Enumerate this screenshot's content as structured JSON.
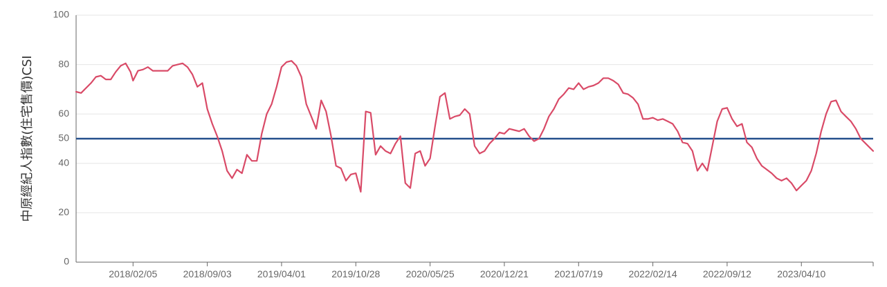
{
  "chart_data": {
    "type": "line",
    "title": "",
    "xlabel": "",
    "ylabel": "中原經紀人指數(住宅售價)CSI",
    "ylim": [
      0,
      100
    ],
    "yticks": [
      0,
      20,
      40,
      50,
      60,
      80,
      100
    ],
    "x_ticks": [
      "2018/02/05",
      "2018/09/03",
      "2019/04/01",
      "2019/10/28",
      "2020/05/25",
      "2020/12/21",
      "2021/07/19",
      "2022/02/14",
      "2022/09/12",
      "2023/04/10"
    ],
    "x_range": [
      "2017/08/28",
      "2023/10/30"
    ],
    "grid": true,
    "reference_line": {
      "value": 50,
      "color": "#234f8c"
    },
    "series": [
      {
        "color": "#d94a67",
        "points": [
          [
            "2017/08/28",
            69
          ],
          [
            "2017/09/11",
            68.5
          ],
          [
            "2017/09/25",
            70.5
          ],
          [
            "2017/10/09",
            72.5
          ],
          [
            "2017/10/23",
            75
          ],
          [
            "2017/11/06",
            75.5
          ],
          [
            "2017/11/20",
            74
          ],
          [
            "2017/12/04",
            74
          ],
          [
            "2017/12/18",
            77
          ],
          [
            "2018/01/01",
            79.5
          ],
          [
            "2018/01/15",
            80.5
          ],
          [
            "2018/01/29",
            77
          ],
          [
            "2018/02/05",
            73.5
          ],
          [
            "2018/02/19",
            77.5
          ],
          [
            "2018/03/05",
            78
          ],
          [
            "2018/03/19",
            79
          ],
          [
            "2018/04/02",
            77.5
          ],
          [
            "2018/04/16",
            77.5
          ],
          [
            "2018/04/30",
            77.5
          ],
          [
            "2018/05/14",
            77.5
          ],
          [
            "2018/05/28",
            79.5
          ],
          [
            "2018/06/11",
            80
          ],
          [
            "2018/06/25",
            80.5
          ],
          [
            "2018/07/09",
            79
          ],
          [
            "2018/07/23",
            76
          ],
          [
            "2018/08/06",
            71
          ],
          [
            "2018/08/20",
            72.5
          ],
          [
            "2018/09/03",
            62
          ],
          [
            "2018/09/17",
            56
          ],
          [
            "2018/10/01",
            51
          ],
          [
            "2018/10/15",
            45
          ],
          [
            "2018/10/29",
            37
          ],
          [
            "2018/11/12",
            34
          ],
          [
            "2018/11/26",
            37.5
          ],
          [
            "2018/12/10",
            36
          ],
          [
            "2018/12/24",
            43.5
          ],
          [
            "2019/01/07",
            41
          ],
          [
            "2019/01/21",
            41
          ],
          [
            "2019/02/04",
            52
          ],
          [
            "2019/02/18",
            60
          ],
          [
            "2019/03/04",
            64
          ],
          [
            "2019/03/18",
            71
          ],
          [
            "2019/04/01",
            79
          ],
          [
            "2019/04/15",
            81
          ],
          [
            "2019/04/29",
            81.5
          ],
          [
            "2019/05/13",
            79.5
          ],
          [
            "2019/05/27",
            75
          ],
          [
            "2019/06/10",
            64
          ],
          [
            "2019/06/24",
            59
          ],
          [
            "2019/07/08",
            54
          ],
          [
            "2019/07/22",
            65.5
          ],
          [
            "2019/08/05",
            61
          ],
          [
            "2019/08/19",
            51
          ],
          [
            "2019/09/02",
            39
          ],
          [
            "2019/09/16",
            38
          ],
          [
            "2019/09/30",
            33
          ],
          [
            "2019/10/14",
            35.5
          ],
          [
            "2019/10/28",
            36
          ],
          [
            "2019/11/11",
            28.5
          ],
          [
            "2019/11/25",
            61
          ],
          [
            "2019/12/09",
            60.5
          ],
          [
            "2019/12/23",
            43.5
          ],
          [
            "2020/01/06",
            47
          ],
          [
            "2020/01/20",
            45
          ],
          [
            "2020/02/03",
            44
          ],
          [
            "2020/02/17",
            48
          ],
          [
            "2020/03/02",
            51
          ],
          [
            "2020/03/16",
            32
          ],
          [
            "2020/03/30",
            30
          ],
          [
            "2020/04/13",
            44
          ],
          [
            "2020/04/27",
            45
          ],
          [
            "2020/05/11",
            39
          ],
          [
            "2020/05/25",
            42
          ],
          [
            "2020/06/08",
            55
          ],
          [
            "2020/06/22",
            67
          ],
          [
            "2020/07/06",
            68.5
          ],
          [
            "2020/07/20",
            58
          ],
          [
            "2020/08/03",
            59
          ],
          [
            "2020/08/17",
            59.5
          ],
          [
            "2020/08/31",
            62
          ],
          [
            "2020/09/14",
            60
          ],
          [
            "2020/09/28",
            47
          ],
          [
            "2020/10/12",
            44
          ],
          [
            "2020/10/26",
            45
          ],
          [
            "2020/11/09",
            48
          ],
          [
            "2020/11/23",
            50
          ],
          [
            "2020/12/07",
            52.5
          ],
          [
            "2020/12/21",
            52
          ],
          [
            "2021/01/04",
            54
          ],
          [
            "2021/01/18",
            53.5
          ],
          [
            "2021/02/01",
            53
          ],
          [
            "2021/02/15",
            54
          ],
          [
            "2021/03/01",
            51
          ],
          [
            "2021/03/15",
            49
          ],
          [
            "2021/03/29",
            50
          ],
          [
            "2021/04/12",
            54
          ],
          [
            "2021/04/26",
            59
          ],
          [
            "2021/05/10",
            62
          ],
          [
            "2021/05/24",
            66
          ],
          [
            "2021/06/07",
            68
          ],
          [
            "2021/06/21",
            70.5
          ],
          [
            "2021/07/05",
            70
          ],
          [
            "2021/07/19",
            72.5
          ],
          [
            "2021/08/02",
            70
          ],
          [
            "2021/08/16",
            71
          ],
          [
            "2021/08/30",
            71.5
          ],
          [
            "2021/09/13",
            72.5
          ],
          [
            "2021/09/27",
            74.5
          ],
          [
            "2021/10/11",
            74.5
          ],
          [
            "2021/10/25",
            73.5
          ],
          [
            "2021/11/08",
            72
          ],
          [
            "2021/11/22",
            68.5
          ],
          [
            "2021/12/06",
            68
          ],
          [
            "2021/12/20",
            66.5
          ],
          [
            "2022/01/03",
            64
          ],
          [
            "2022/01/17",
            58
          ],
          [
            "2022/01/31",
            58
          ],
          [
            "2022/02/14",
            58.5
          ],
          [
            "2022/02/28",
            57.5
          ],
          [
            "2022/03/14",
            58
          ],
          [
            "2022/03/28",
            57
          ],
          [
            "2022/04/11",
            56
          ],
          [
            "2022/04/25",
            53
          ],
          [
            "2022/05/09",
            48.5
          ],
          [
            "2022/05/23",
            48
          ],
          [
            "2022/06/06",
            45
          ],
          [
            "2022/06/20",
            37
          ],
          [
            "2022/07/04",
            40
          ],
          [
            "2022/07/18",
            37
          ],
          [
            "2022/08/01",
            47
          ],
          [
            "2022/08/15",
            57
          ],
          [
            "2022/08/29",
            62
          ],
          [
            "2022/09/12",
            62.5
          ],
          [
            "2022/09/26",
            58
          ],
          [
            "2022/10/10",
            55
          ],
          [
            "2022/10/24",
            56
          ],
          [
            "2022/11/07",
            48.5
          ],
          [
            "2022/11/21",
            46.5
          ],
          [
            "2022/12/05",
            42
          ],
          [
            "2022/12/19",
            39
          ],
          [
            "2023/01/02",
            37.5
          ],
          [
            "2023/01/16",
            36
          ],
          [
            "2023/01/30",
            34
          ],
          [
            "2023/02/13",
            33
          ],
          [
            "2023/02/27",
            34
          ],
          [
            "2023/03/13",
            32
          ],
          [
            "2023/03/27",
            29
          ],
          [
            "2023/04/10",
            31
          ],
          [
            "2023/04/24",
            33
          ],
          [
            "2023/05/08",
            37
          ],
          [
            "2023/05/22",
            44
          ],
          [
            "2023/06/05",
            53
          ],
          [
            "2023/06/19",
            60
          ],
          [
            "2023/07/03",
            65
          ],
          [
            "2023/07/17",
            65.5
          ],
          [
            "2023/07/31",
            61
          ],
          [
            "2023/08/14",
            59
          ],
          [
            "2023/08/28",
            57
          ],
          [
            "2023/09/11",
            54
          ],
          [
            "2023/09/25",
            50
          ],
          [
            "2023/10/09",
            48
          ],
          [
            "2023/10/23",
            46
          ],
          [
            "2023/10/30",
            45
          ]
        ]
      }
    ]
  }
}
